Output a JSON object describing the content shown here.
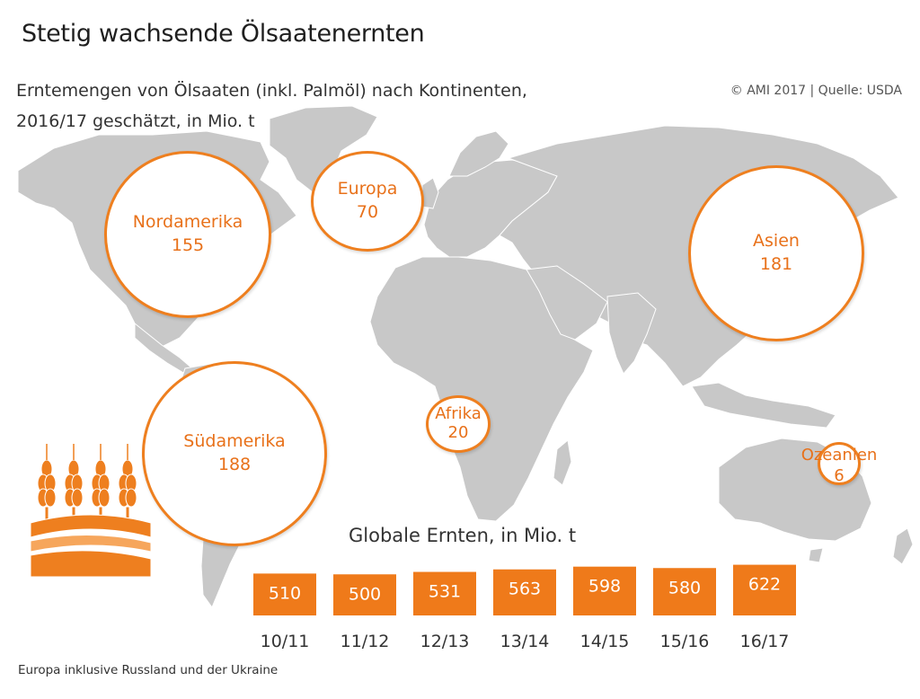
{
  "title": "Stetig wachsende Ölsaatenernten",
  "subtitle_line1": "Erntemengen von Ölsaaten (inkl. Palmöl) nach Kontinenten,",
  "subtitle_line2": "2016/17 geschätzt, in Mio. t",
  "source": "© AMI 2017 | Quelle: USDA",
  "footnote": "Europa inklusive Russland und der Ukraine",
  "colors": {
    "accent": "#ee7f1f",
    "bar_fill": "#ef7a1a",
    "map_land": "#c8c8c8",
    "map_border": "#ffffff"
  },
  "chart_data": [
    {
      "type": "bubble-map",
      "regions": [
        {
          "name": "Nordamerika",
          "value": 155
        },
        {
          "name": "Europa",
          "value": 70
        },
        {
          "name": "Asien",
          "value": 181
        },
        {
          "name": "Südamerika",
          "value": 188
        },
        {
          "name": "Afrika",
          "value": 20
        },
        {
          "name": "Ozeanien",
          "value": 6
        }
      ]
    },
    {
      "type": "bar",
      "title": "Globale Ernten, in Mio. t",
      "categories": [
        "10/11",
        "11/12",
        "12/13",
        "13/14",
        "14/15",
        "15/16",
        "16/17"
      ],
      "values": [
        510,
        500,
        531,
        563,
        598,
        580,
        622
      ],
      "data_labels": true
    }
  ],
  "icons": {
    "logo": "wheat-icon"
  }
}
